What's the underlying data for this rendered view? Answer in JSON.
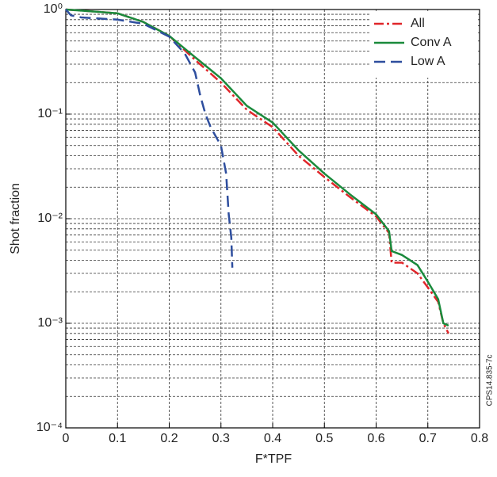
{
  "chart_data": {
    "type": "line",
    "xlabel": "F*TPF",
    "ylabel": "Shot fraction",
    "annotation": "CPS14.835-7c",
    "xlim": [
      0,
      0.8
    ],
    "xticks": [
      0,
      0.1,
      0.2,
      0.3,
      0.4,
      0.5,
      0.6,
      0.7,
      0.8
    ],
    "ylim": [
      0.0001,
      1
    ],
    "log_y": true,
    "grid": true,
    "legend": "upper right",
    "yticks": [
      {
        "value": 0.0001,
        "label": "10⁻⁴"
      },
      {
        "value": 0.001,
        "label": "10⁻³"
      },
      {
        "value": 0.01,
        "label": "10⁻²"
      },
      {
        "value": 0.1,
        "label": "10⁻¹"
      },
      {
        "value": 1,
        "label": "10⁰"
      }
    ],
    "yminorticks": [
      0.0002,
      0.0003,
      0.0004,
      0.0005,
      0.0006,
      0.0007,
      0.0008,
      0.0009,
      0.002,
      0.003,
      0.004,
      0.005,
      0.006,
      0.007,
      0.008,
      0.009,
      0.02,
      0.03,
      0.04,
      0.05,
      0.06,
      0.07,
      0.08,
      0.09,
      0.2,
      0.3,
      0.4,
      0.5,
      0.6,
      0.7,
      0.8,
      0.9
    ],
    "series": [
      {
        "name": "All",
        "color": "#e0262a",
        "dash": "12,4,3,4",
        "x": [
          0,
          0.1,
          0.15,
          0.2,
          0.25,
          0.3,
          0.35,
          0.4,
          0.45,
          0.5,
          0.55,
          0.6,
          0.625,
          0.63,
          0.65,
          0.68,
          0.7,
          0.72,
          0.73,
          0.74
        ],
        "values": [
          1,
          0.92,
          0.76,
          0.56,
          0.33,
          0.2,
          0.11,
          0.075,
          0.04,
          0.025,
          0.016,
          0.0105,
          0.0073,
          0.0038,
          0.0038,
          0.003,
          0.0022,
          0.0016,
          0.001,
          0.0008
        ]
      },
      {
        "name": "Conv A",
        "color": "#1a8a3c",
        "dash": "none",
        "x": [
          0,
          0.1,
          0.15,
          0.2,
          0.25,
          0.3,
          0.35,
          0.4,
          0.45,
          0.5,
          0.55,
          0.6,
          0.625,
          0.63,
          0.65,
          0.68,
          0.7,
          0.72,
          0.73,
          0.74
        ],
        "values": [
          1,
          0.92,
          0.76,
          0.56,
          0.35,
          0.22,
          0.12,
          0.083,
          0.045,
          0.027,
          0.017,
          0.011,
          0.0076,
          0.0049,
          0.0045,
          0.0036,
          0.0025,
          0.0017,
          0.001,
          0.00095
        ]
      },
      {
        "name": "Low A",
        "color": "#2e4e9e",
        "dash": "14,7",
        "x": [
          0,
          0.01,
          0.03,
          0.1,
          0.15,
          0.2,
          0.23,
          0.25,
          0.26,
          0.27,
          0.28,
          0.3,
          0.31,
          0.315,
          0.32,
          0.322
        ],
        "values": [
          1,
          0.88,
          0.84,
          0.8,
          0.73,
          0.55,
          0.38,
          0.25,
          0.15,
          0.1,
          0.075,
          0.05,
          0.027,
          0.011,
          0.0066,
          0.0034
        ]
      }
    ]
  }
}
